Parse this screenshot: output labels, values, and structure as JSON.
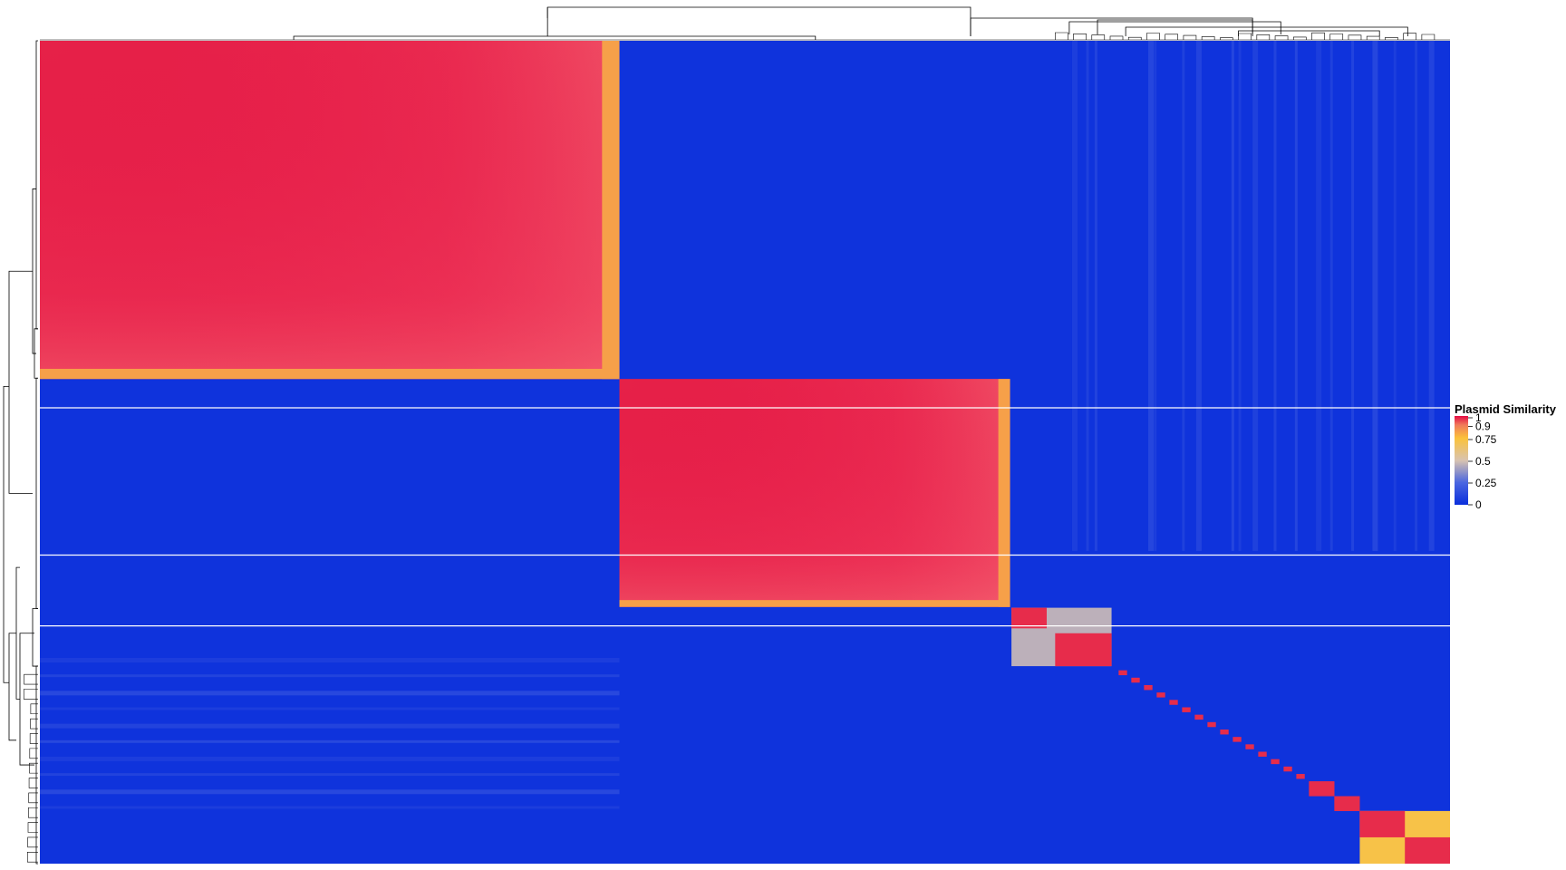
{
  "chart_data": {
    "type": "heatmap",
    "title": "",
    "xlabel": "",
    "ylabel": "",
    "legend": {
      "title": "Plasmid Similarity",
      "position": "right",
      "ticks": [
        {
          "value": 1,
          "label": "1"
        },
        {
          "value": 0.9,
          "label": "0.9"
        },
        {
          "value": 0.75,
          "label": "0.75"
        },
        {
          "value": 0.5,
          "label": "0.5"
        },
        {
          "value": 0.25,
          "label": "0.25"
        },
        {
          "value": 0,
          "label": "0"
        }
      ],
      "color_stops": [
        {
          "value": 0,
          "color": "#0a2fdc"
        },
        {
          "value": 0.25,
          "color": "#4a66e0"
        },
        {
          "value": 0.5,
          "color": "#d8c3b0"
        },
        {
          "value": 0.75,
          "color": "#fbc23a"
        },
        {
          "value": 0.9,
          "color": "#f07a5a"
        },
        {
          "value": 1,
          "color": "#e30b44"
        }
      ]
    },
    "background_value": 0.02,
    "dendrogram": {
      "rows": true,
      "columns": true
    },
    "clusters": [
      {
        "index_range": [
          0,
          0.411
        ],
        "within_similarity": 0.98
      },
      {
        "index_range": [
          0.411,
          0.688
        ],
        "within_similarity": 0.98
      },
      {
        "index_range": [
          0.689,
          0.714
        ],
        "within_similarity": 0.97
      },
      {
        "index_range": [
          0.72,
          0.76
        ],
        "within_similarity": 0.97
      },
      {
        "index_range": [
          0.689,
          0.76
        ],
        "within_similarity": 0.45
      },
      {
        "index_range": [
          0.9,
          0.918
        ],
        "within_similarity": 0.97
      },
      {
        "index_range": [
          0.918,
          0.936
        ],
        "within_similarity": 0.97
      },
      {
        "index_range": [
          0.936,
          0.968
        ],
        "within_similarity": 0.97
      },
      {
        "index_range": [
          0.968,
          1.0
        ],
        "within_similarity": 0.97
      },
      {
        "index_range": [
          0.936,
          1.0
        ],
        "within_similarity": 0.72
      }
    ]
  }
}
